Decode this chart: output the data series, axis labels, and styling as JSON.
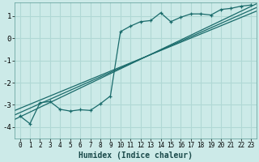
{
  "xlabel": "Humidex (Indice chaleur)",
  "background_color": "#cceae8",
  "grid_color": "#b0d8d5",
  "line_color": "#1a6b6b",
  "x_ticks": [
    0,
    1,
    2,
    3,
    4,
    5,
    6,
    7,
    8,
    9,
    10,
    11,
    12,
    13,
    14,
    15,
    16,
    17,
    18,
    19,
    20,
    21,
    22,
    23
  ],
  "y_ticks": [
    -4,
    -3,
    -2,
    -1,
    0,
    1
  ],
  "ylim": [
    -4.5,
    1.6
  ],
  "xlim": [
    -0.5,
    23.5
  ],
  "marker_line_x": [
    0,
    1,
    2,
    3,
    4,
    5,
    6,
    7,
    8,
    9,
    10,
    11,
    12,
    13,
    14,
    15,
    16,
    17,
    18,
    19,
    20,
    21,
    22,
    23
  ],
  "marker_line_y": [
    -3.5,
    -3.85,
    -2.9,
    -2.85,
    -3.2,
    -3.28,
    -3.22,
    -3.25,
    -2.95,
    -2.6,
    0.3,
    0.55,
    0.75,
    0.8,
    1.15,
    0.75,
    0.95,
    1.1,
    1.1,
    1.05,
    1.3,
    1.35,
    1.45,
    1.5
  ],
  "reg_line1_x": [
    -0.5,
    23.5
  ],
  "reg_line1_y": [
    -3.65,
    1.55
  ],
  "reg_line2_x": [
    -0.5,
    23.5
  ],
  "reg_line2_y": [
    -3.45,
    1.38
  ],
  "reg_line3_x": [
    -0.5,
    23.5
  ],
  "reg_line3_y": [
    -3.25,
    1.22
  ]
}
